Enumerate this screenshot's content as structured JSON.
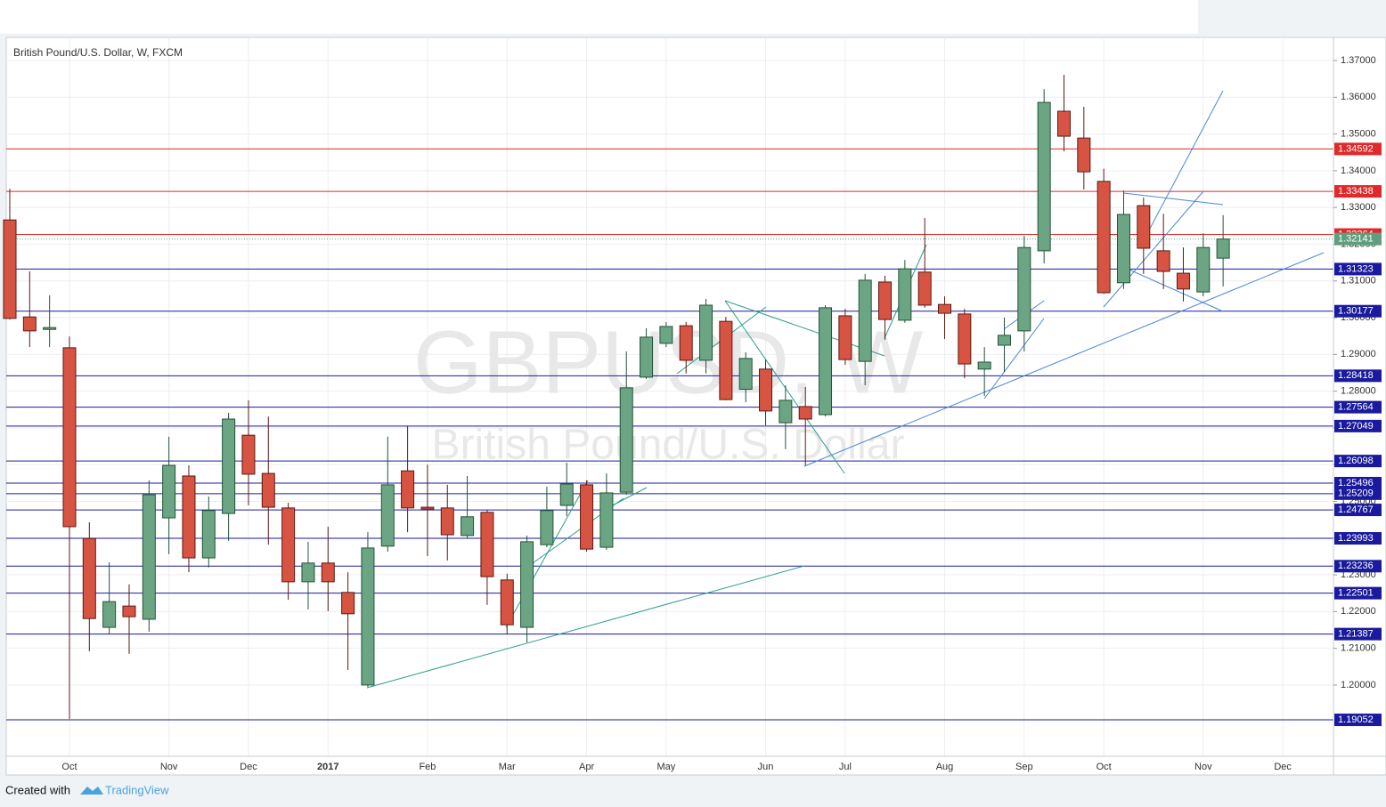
{
  "chart_data": {
    "type": "candlestick",
    "title": "British Pound/U.S. Dollar, W, FXCM",
    "watermark": "GBPUSD, W",
    "watermark_subtitle": "British Pound/U.S. Dollar",
    "categories": [
      null,
      null,
      null,
      "Oct",
      null,
      null,
      null,
      null,
      "Nov",
      null,
      null,
      null,
      "Dec",
      null,
      null,
      null,
      "2017",
      null,
      null,
      null,
      null,
      "Feb",
      null,
      null,
      null,
      "Mar",
      null,
      null,
      null,
      "Apr",
      null,
      null,
      null,
      "May",
      null,
      null,
      null,
      null,
      "Jun",
      null,
      null,
      null,
      "Jul",
      null,
      null,
      null,
      null,
      "Aug",
      null,
      null,
      null,
      "Sep",
      null,
      null,
      null,
      "Oct",
      null,
      null,
      null,
      null,
      "Nov",
      null,
      null,
      null,
      "Dec",
      null
    ],
    "open": [
      1.3266,
      1.3002,
      1.2968,
      1.2918,
      1.2399,
      1.2157,
      1.2215,
      1.2179,
      1.2455,
      1.2569,
      1.2346,
      1.2467,
      1.268,
      1.2576,
      1.2482,
      1.2281,
      1.2332,
      1.2252,
      1.2,
      1.2378,
      1.2583,
      1.2484,
      1.2482,
      1.2407,
      1.247,
      1.2286,
      1.2157,
      1.2382,
      1.2489,
      1.2545,
      1.2375,
      1.2525,
      1.2838,
      1.293,
      1.2978,
      1.2884,
      1.299,
      1.2805,
      1.286,
      1.2714,
      1.2758,
      1.2736,
      1.3005,
      1.2881,
      1.3097,
      1.2993,
      1.3124,
      1.3036,
      1.301,
      1.286,
      1.2925,
      1.2964,
      1.3182,
      1.3562,
      1.3489,
      1.3371,
      1.3095,
      1.3305,
      1.3182,
      1.3121,
      1.307,
      1.3162,
      null,
      null,
      null,
      null
    ],
    "high": [
      1.3351,
      1.3126,
      1.3061,
      1.2949,
      1.2443,
      1.2334,
      1.2274,
      1.2557,
      1.2676,
      1.2598,
      1.2513,
      1.2741,
      1.2775,
      1.2731,
      1.2496,
      1.239,
      1.2431,
      1.2307,
      1.2416,
      1.2676,
      1.2705,
      1.26,
      1.2545,
      1.2569,
      1.2477,
      1.2303,
      1.2407,
      1.254,
      1.2605,
      1.2557,
      1.2576,
      1.2908,
      1.2971,
      1.2988,
      1.2988,
      1.3051,
      1.3002,
      1.2906,
      1.2886,
      1.2816,
      1.2811,
      1.3034,
      1.3024,
      1.3119,
      1.3114,
      1.3157,
      1.3271,
      1.3058,
      1.3024,
      1.292,
      1.3,
      1.3223,
      1.3622,
      1.3661,
      1.3574,
      1.3405,
      1.3346,
      1.3327,
      1.3283,
      1.3191,
      1.323,
      1.3279,
      null,
      null,
      null,
      null
    ],
    "low": [
      1.2995,
      1.292,
      1.292,
      1.1908,
      1.2092,
      1.214,
      1.2085,
      1.2145,
      1.2356,
      1.2307,
      1.232,
      1.2392,
      1.2489,
      1.2382,
      1.2232,
      1.2206,
      1.2201,
      1.2041,
      1.1995,
      1.2363,
      1.2416,
      1.2351,
      1.2339,
      1.2399,
      1.2218,
      1.2138,
      1.2116,
      1.2375,
      1.246,
      1.2363,
      1.2368,
      1.2518,
      1.2833,
      1.292,
      1.2848,
      1.2848,
      1.2775,
      1.277,
      1.2707,
      1.2642,
      1.2598,
      1.2731,
      1.2872,
      1.2816,
      1.294,
      1.2986,
      1.3027,
      1.2942,
      1.2835,
      1.2787,
      1.2852,
      1.2908,
      1.3148,
      1.3453,
      1.3349,
      1.3065,
      1.3078,
      1.3119,
      1.3078,
      1.3044,
      1.3058,
      1.3085,
      null,
      null,
      null,
      null
    ],
    "close": [
      1.2998,
      1.2964,
      1.2973,
      1.2431,
      1.2181,
      1.2227,
      1.2186,
      1.2518,
      1.2598,
      1.2346,
      1.2475,
      1.2724,
      1.2574,
      1.2484,
      1.2281,
      1.2332,
      1.2281,
      1.2194,
      1.2373,
      1.2545,
      1.2482,
      1.2479,
      1.2409,
      1.2458,
      1.2295,
      1.2164,
      1.239,
      1.2475,
      1.2547,
      1.237,
      1.2523,
      1.2809,
      1.2947,
      1.2976,
      1.2884,
      1.3034,
      1.2777,
      1.2889,
      1.2746,
      1.2775,
      1.2724,
      1.3027,
      1.2886,
      1.3102,
      1.2995,
      1.3133,
      1.3034,
      1.3012,
      1.2874,
      1.2879,
      1.2952,
      1.3191,
      1.3586,
      1.3494,
      1.3397,
      1.3068,
      1.3281,
      1.3189,
      1.3126,
      1.3078,
      1.3191,
      1.32141,
      null,
      null,
      null,
      null
    ],
    "up_color": "#6ba583",
    "down_color": "#d75442",
    "ylim": [
      1.1806,
      1.3763
    ],
    "yticks": [
      {
        "value": 1.2,
        "label": "1.20000"
      },
      {
        "value": 1.21,
        "label": "1.21000"
      },
      {
        "value": 1.22,
        "label": "1.22000"
      },
      {
        "value": 1.23,
        "label": "1.23000"
      },
      {
        "value": 1.24,
        "label": "1.24000"
      },
      {
        "value": 1.25,
        "label": "1.25000"
      },
      {
        "value": 1.26,
        "label": "1.26000"
      },
      {
        "value": 1.27,
        "label": "1.27000"
      },
      {
        "value": 1.28,
        "label": "1.28000"
      },
      {
        "value": 1.29,
        "label": "1.29000"
      },
      {
        "value": 1.3,
        "label": "1.30000"
      },
      {
        "value": 1.31,
        "label": "1.31000"
      },
      {
        "value": 1.32,
        "label": "1.32000"
      },
      {
        "value": 1.33,
        "label": "1.33000"
      },
      {
        "value": 1.34,
        "label": "1.34000"
      },
      {
        "value": 1.35,
        "label": "1.35000"
      },
      {
        "value": 1.36,
        "label": "1.36000"
      },
      {
        "value": 1.37,
        "label": "1.37000"
      }
    ],
    "grid": true,
    "levels": [
      {
        "value": 1.34592,
        "color": "#e0292b"
      },
      {
        "value": 1.33438,
        "color": "#e0292b"
      },
      {
        "value": 1.32264,
        "color": "#e0292b"
      },
      {
        "value": 1.31323,
        "color": "#1a1a9e"
      },
      {
        "value": 1.30177,
        "color": "#1a1a9e"
      },
      {
        "value": 1.28418,
        "color": "#1a1a9e"
      },
      {
        "value": 1.27564,
        "color": "#1a1a9e"
      },
      {
        "value": 1.27049,
        "color": "#1a1a9e"
      },
      {
        "value": 1.26098,
        "color": "#1a1a9e"
      },
      {
        "value": 1.25496,
        "color": "#1a1a9e"
      },
      {
        "value": 1.25209,
        "color": "#1a1a9e"
      },
      {
        "value": 1.24767,
        "color": "#1a1a9e"
      },
      {
        "value": 1.23993,
        "color": "#1a1a9e"
      },
      {
        "value": 1.23236,
        "color": "#1a1a9e"
      },
      {
        "value": 1.22501,
        "color": "#1a1a9e"
      },
      {
        "value": 1.21387,
        "color": "#1a1a9e"
      },
      {
        "value": 1.19052,
        "color": "#1a1a9e"
      }
    ],
    "last_price": 1.32141,
    "last_price_color": "#5f9e7f",
    "footer": {
      "text": "Created with",
      "brand": "TradingView"
    }
  }
}
